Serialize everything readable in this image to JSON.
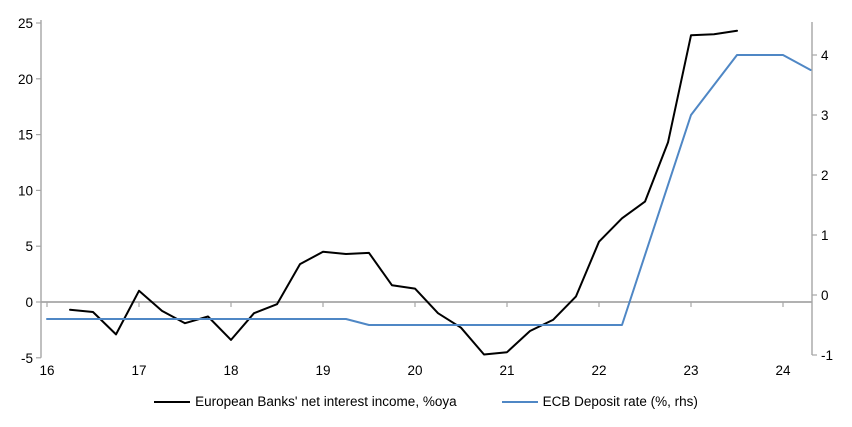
{
  "chart_data": {
    "type": "line",
    "title": "",
    "grid": false,
    "legend_position": "bottom-center",
    "x_axis": {
      "tick_labels": [
        "16",
        "17",
        "18",
        "19",
        "20",
        "21",
        "22",
        "23",
        "24"
      ],
      "tick_values": [
        16,
        17,
        18,
        19,
        20,
        21,
        22,
        23,
        24
      ],
      "range": [
        15.93,
        24.32
      ]
    },
    "y_axis_left": {
      "tick_labels": [
        "25",
        "20",
        "15",
        "10",
        "5",
        "0",
        "-5"
      ],
      "tick_values": [
        25,
        20,
        15,
        10,
        5,
        0,
        -5
      ],
      "range": [
        -5,
        25
      ],
      "zero_line": true
    },
    "y_axis_right": {
      "tick_labels": [
        "4",
        "3",
        "2",
        "1",
        "0",
        "-1"
      ],
      "tick_values": [
        4,
        3,
        2,
        1,
        0,
        -1
      ],
      "range": [
        -1,
        4.55
      ]
    },
    "series": [
      {
        "name": "European Banks' net interest income, %oya",
        "axis": "left",
        "color": "#000000",
        "points": [
          [
            16.25,
            -0.7
          ],
          [
            16.5,
            -0.9
          ],
          [
            16.75,
            -2.9
          ],
          [
            17.0,
            1.0
          ],
          [
            17.25,
            -0.8
          ],
          [
            17.5,
            -1.9
          ],
          [
            17.75,
            -1.3
          ],
          [
            18.0,
            -3.4
          ],
          [
            18.25,
            -1.0
          ],
          [
            18.5,
            -0.2
          ],
          [
            18.75,
            3.4
          ],
          [
            19.0,
            4.5
          ],
          [
            19.25,
            4.3
          ],
          [
            19.5,
            4.4
          ],
          [
            19.75,
            1.5
          ],
          [
            20.0,
            1.2
          ],
          [
            20.25,
            -1.0
          ],
          [
            20.5,
            -2.3
          ],
          [
            20.75,
            -4.7
          ],
          [
            21.0,
            -4.5
          ],
          [
            21.25,
            -2.6
          ],
          [
            21.5,
            -1.6
          ],
          [
            21.75,
            0.5
          ],
          [
            22.0,
            5.4
          ],
          [
            22.25,
            7.5
          ],
          [
            22.5,
            9.0
          ],
          [
            22.75,
            14.3
          ],
          [
            23.0,
            23.9
          ],
          [
            23.25,
            24.0
          ],
          [
            23.5,
            24.3
          ]
        ]
      },
      {
        "name": "ECB Deposit rate (%, rhs)",
        "axis": "right",
        "color": "#4f87c5",
        "points": [
          [
            16.0,
            -0.4
          ],
          [
            19.25,
            -0.4
          ],
          [
            19.5,
            -0.5
          ],
          [
            22.25,
            -0.5
          ],
          [
            23.0,
            3.0
          ],
          [
            23.5,
            4.0
          ],
          [
            24.0,
            4.0
          ],
          [
            24.3,
            3.75
          ]
        ]
      }
    ]
  },
  "legend": {
    "items": [
      {
        "label": "European Banks' net interest income, %oya",
        "color": "#000000"
      },
      {
        "label": "ECB Deposit rate (%, rhs)",
        "color": "#4f87c5"
      }
    ]
  },
  "colors": {
    "axis": "#a6a6a6",
    "zero_line": "#a6a6a6",
    "text": "#000000",
    "background": "#ffffff"
  }
}
